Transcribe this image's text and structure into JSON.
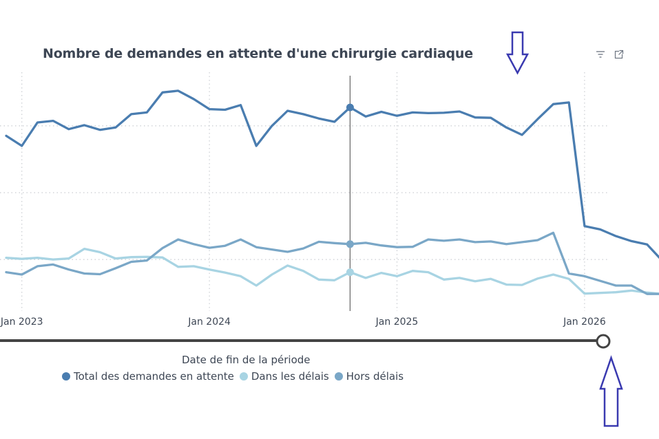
{
  "chart_data": {
    "type": "line",
    "title": "Nombre de demandes en attente d'une chirurgie cardiaque",
    "xlabel": "Date de fin de la période",
    "ylabel": "",
    "x_tick_labels": [
      "Jan 2023",
      "Jan 2024",
      "Jan 2025",
      "Jan 2026"
    ],
    "x_tick_index": [
      1,
      13,
      25,
      37
    ],
    "highlight_index": 22,
    "series": [
      {
        "name": "Total des demandes en attente",
        "color": "#4a7db0",
        "values": [
          1720,
          1690,
          1760,
          1765,
          1740,
          1752,
          1738,
          1745,
          1785,
          1790,
          1850,
          1855,
          1830,
          1800,
          1798,
          1812,
          1690,
          1750,
          1795,
          1785,
          1772,
          1762,
          1805,
          1778,
          1792,
          1780,
          1790,
          1788,
          1789,
          1793,
          1775,
          1774,
          1745,
          1723,
          1770,
          1815,
          1820,
          1450,
          1440,
          1420,
          1405,
          1395,
          1345
        ]
      },
      {
        "name": "Dans les délais",
        "color": "#a8d4e3",
        "values": [
          1355,
          1352,
          1355,
          1350,
          1353,
          1382,
          1372,
          1353,
          1357,
          1358,
          1356,
          1328,
          1330,
          1320,
          1311,
          1300,
          1272,
          1305,
          1332,
          1316,
          1290,
          1288,
          1312,
          1295,
          1310,
          1300,
          1316,
          1312,
          1290,
          1295,
          1285,
          1292,
          1275,
          1274,
          1293,
          1305,
          1292,
          1248,
          1250,
          1252,
          1257,
          1251,
          1247
        ]
      },
      {
        "name": "Hors délais",
        "color": "#7aa7c7",
        "values": [
          1312,
          1305,
          1330,
          1335,
          1320,
          1308,
          1306,
          1324,
          1343,
          1347,
          1384,
          1410,
          1396,
          1385,
          1391,
          1410,
          1387,
          1380,
          1373,
          1383,
          1403,
          1399,
          1396,
          1400,
          1392,
          1387,
          1388,
          1410,
          1406,
          1410,
          1402,
          1404,
          1396,
          1402,
          1408,
          1430,
          1308,
          1300,
          1286,
          1272,
          1272,
          1247,
          1247
        ]
      }
    ],
    "ylim": [
      1200,
      1900
    ],
    "y_grid_values": [
      1350,
      1550,
      1750
    ],
    "y_tick_labels": [],
    "annotations": [
      "arrow pointing down at peak before drop",
      "arrow pointing up at slider end handle"
    ]
  }
}
